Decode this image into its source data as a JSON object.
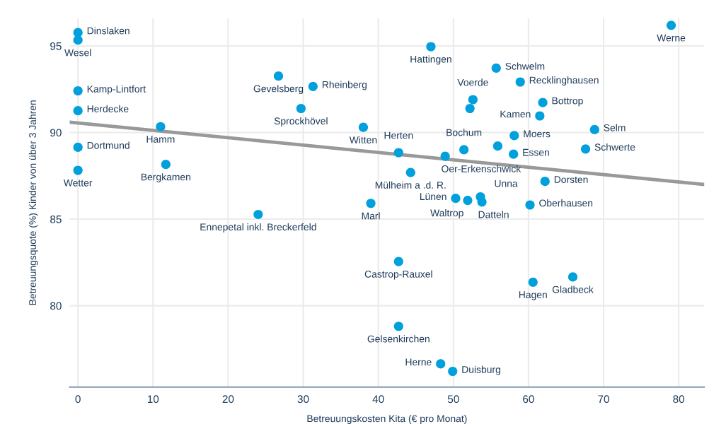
{
  "chart_data": {
    "type": "scatter",
    "xlabel": "Betreuungskosten Kita (€ pro Monat)",
    "ylabel": "Betreuungsquote (%) Kinder von über 3 Jahren",
    "xlim": [
      -1.1,
      83.4
    ],
    "ylim": [
      75.3,
      96.6
    ],
    "xticks": [
      0,
      10,
      20,
      30,
      40,
      50,
      60,
      70,
      80
    ],
    "yticks": [
      80,
      85,
      90,
      95
    ],
    "grid": true,
    "marker": "circle",
    "series": [
      {
        "color": "#00a0dc",
        "x": [
          0,
          0,
          0,
          0,
          0,
          0,
          11.0,
          11.7,
          24.0,
          26.7,
          31.3,
          29.7,
          38.0,
          47.0,
          55.7,
          58.9,
          52.6,
          52.2,
          61.9,
          61.5,
          68.8,
          67.6,
          58.1,
          58.0,
          42.7,
          51.4,
          55.9,
          48.9,
          44.3,
          39.0,
          50.3,
          51.9,
          53.6,
          53.8,
          60.2,
          62.2,
          42.7,
          60.6,
          65.9,
          42.7,
          48.3,
          49.9,
          79.0
        ],
        "values": [
          95.77,
          95.34,
          92.41,
          91.26,
          89.15,
          87.82,
          90.34,
          88.16,
          85.27,
          93.26,
          92.66,
          91.39,
          90.3,
          94.96,
          93.72,
          92.92,
          91.9,
          91.39,
          91.73,
          90.96,
          90.17,
          89.05,
          89.82,
          88.75,
          88.84,
          89.01,
          89.22,
          88.63,
          87.69,
          85.91,
          86.2,
          86.08,
          86.29,
          85.99,
          85.82,
          87.18,
          82.55,
          81.36,
          81.66,
          78.81,
          76.64,
          76.21,
          96.19
        ]
      },
      {
        "type": "line",
        "color": "#999999",
        "x": [
          -1.1,
          83.4
        ],
        "values": [
          90.6,
          87.0
        ],
        "marker": "none"
      }
    ],
    "annotations": [
      {
        "text": "Dinslaken",
        "x": 0,
        "y": 95.77
      },
      {
        "text": "Wesel",
        "x": 0,
        "y": 95.34
      },
      {
        "text": "Kamp-Lintfort",
        "x": 0,
        "y": 92.41
      },
      {
        "text": "Herdecke",
        "x": 0,
        "y": 91.26
      },
      {
        "text": "Dortmund",
        "x": 0,
        "y": 89.15
      },
      {
        "text": "Wetter",
        "x": 0,
        "y": 87.82
      },
      {
        "text": "Hamm",
        "x": 11.0,
        "y": 90.34
      },
      {
        "text": "Bergkamen",
        "x": 11.7,
        "y": 88.16
      },
      {
        "text": "Ennepetal inkl. Breckerfeld",
        "x": 24.0,
        "y": 85.27
      },
      {
        "text": "Gevelsberg",
        "x": 26.7,
        "y": 93.26
      },
      {
        "text": "Rheinberg",
        "x": 31.3,
        "y": 92.66
      },
      {
        "text": "Sprockhövel",
        "x": 29.7,
        "y": 91.39
      },
      {
        "text": "Witten",
        "x": 38.0,
        "y": 90.3
      },
      {
        "text": "Hattingen",
        "x": 47.0,
        "y": 94.96
      },
      {
        "text": "Schwelm",
        "x": 55.7,
        "y": 93.72
      },
      {
        "text": "Recklinghausen",
        "x": 58.9,
        "y": 92.92
      },
      {
        "text": "Voerde",
        "x": 52.6,
        "y": 91.9
      },
      {
        "text": "Bottrop",
        "x": 61.9,
        "y": 91.73
      },
      {
        "text": "Kamen",
        "x": 61.5,
        "y": 90.96
      },
      {
        "text": "Selm",
        "x": 68.8,
        "y": 90.17
      },
      {
        "text": "Schwerte",
        "x": 67.6,
        "y": 89.05
      },
      {
        "text": "Moers",
        "x": 58.1,
        "y": 89.82
      },
      {
        "text": "Essen",
        "x": 58.0,
        "y": 88.75
      },
      {
        "text": "Herten",
        "x": 42.7,
        "y": 88.84
      },
      {
        "text": "Bochum",
        "x": 51.4,
        "y": 89.01
      },
      {
        "text": "Oer-Erkenschwick",
        "x": 48.9,
        "y": 88.63
      },
      {
        "text": "Mülheim a .d. R.",
        "x": 44.3,
        "y": 87.69
      },
      {
        "text": "Marl",
        "x": 39.0,
        "y": 85.91
      },
      {
        "text": "Lünen",
        "x": 50.3,
        "y": 86.2
      },
      {
        "text": "Waltrop",
        "x": 51.9,
        "y": 86.08
      },
      {
        "text": "Unna",
        "x": 53.6,
        "y": 86.29
      },
      {
        "text": "Datteln",
        "x": 53.8,
        "y": 85.99
      },
      {
        "text": "Oberhausen",
        "x": 60.2,
        "y": 85.82
      },
      {
        "text": "Dorsten",
        "x": 62.2,
        "y": 87.18
      },
      {
        "text": "Castrop-Rauxel",
        "x": 42.7,
        "y": 82.55
      },
      {
        "text": "Hagen",
        "x": 60.6,
        "y": 81.36
      },
      {
        "text": "Gladbeck",
        "x": 65.9,
        "y": 81.66
      },
      {
        "text": "Gelsenkirchen",
        "x": 42.7,
        "y": 78.81
      },
      {
        "text": "Herne",
        "x": 48.3,
        "y": 76.64
      },
      {
        "text": "Duisburg",
        "x": 49.9,
        "y": 76.21
      },
      {
        "text": "Werne",
        "x": 79.0,
        "y": 96.19
      }
    ]
  }
}
